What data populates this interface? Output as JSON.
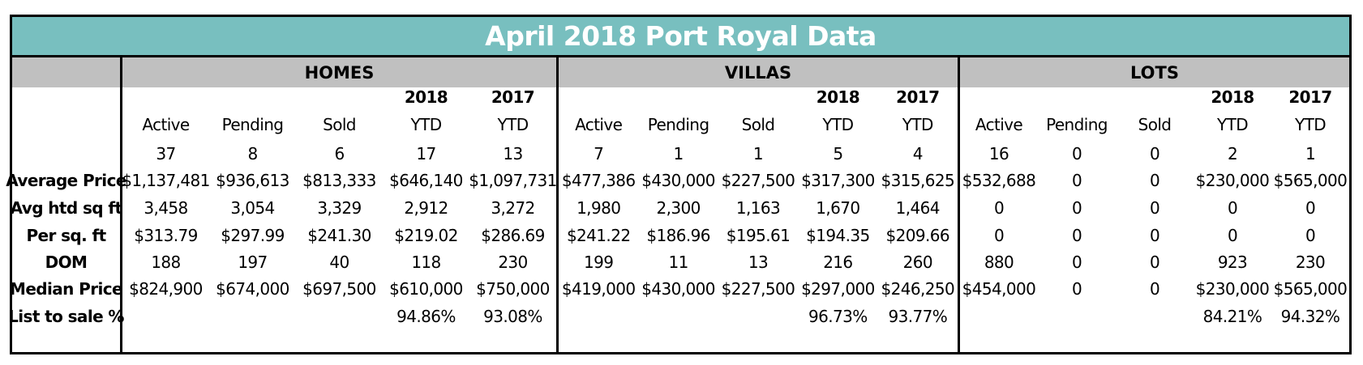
{
  "chart_data": {
    "type": "table",
    "title": "April 2018 Port Royal Data",
    "sections": [
      {
        "name": "HOMES",
        "columns": [
          {
            "top": "",
            "bottom": "Active"
          },
          {
            "top": "",
            "bottom": "Pending"
          },
          {
            "top": "",
            "bottom": "Sold"
          },
          {
            "top": "2018",
            "bottom": "YTD"
          },
          {
            "top": "2017",
            "bottom": "YTD"
          }
        ],
        "counts": [
          "37",
          "8",
          "6",
          "17",
          "13"
        ],
        "rows": [
          [
            "$1,137,481",
            "$936,613",
            "$813,333",
            "$646,140",
            "$1,097,731"
          ],
          [
            "3,458",
            "3,054",
            "3,329",
            "2,912",
            "3,272"
          ],
          [
            "$313.79",
            "$297.99",
            "$241.30",
            "$219.02",
            "$286.69"
          ],
          [
            "188",
            "197",
            "40",
            "118",
            "230"
          ],
          [
            "$824,900",
            "$674,000",
            "$697,500",
            "$610,000",
            "$750,000"
          ],
          [
            "",
            "",
            "",
            "94.86%",
            "93.08%"
          ]
        ]
      },
      {
        "name": "VILLAS",
        "columns": [
          {
            "top": "",
            "bottom": "Active"
          },
          {
            "top": "",
            "bottom": "Pending"
          },
          {
            "top": "",
            "bottom": "Sold"
          },
          {
            "top": "2018",
            "bottom": "YTD"
          },
          {
            "top": "2017",
            "bottom": "YTD"
          }
        ],
        "counts": [
          "7",
          "1",
          "1",
          "5",
          "4"
        ],
        "rows": [
          [
            "$477,386",
            "$430,000",
            "$227,500",
            "$317,300",
            "$315,625"
          ],
          [
            "1,980",
            "2,300",
            "1,163",
            "1,670",
            "1,464"
          ],
          [
            "$241.22",
            "$186.96",
            "$195.61",
            "$194.35",
            "$209.66"
          ],
          [
            "199",
            "11",
            "13",
            "216",
            "260"
          ],
          [
            "$419,000",
            "$430,000",
            "$227,500",
            "$297,000",
            "$246,250"
          ],
          [
            "",
            "",
            "",
            "96.73%",
            "93.77%"
          ]
        ]
      },
      {
        "name": "LOTS",
        "columns": [
          {
            "top": "",
            "bottom": "Active"
          },
          {
            "top": "",
            "bottom": "Pending"
          },
          {
            "top": "",
            "bottom": "Sold"
          },
          {
            "top": "2018",
            "bottom": "YTD"
          },
          {
            "top": "2017",
            "bottom": "YTD"
          }
        ],
        "counts": [
          "16",
          "0",
          "0",
          "2",
          "1"
        ],
        "rows": [
          [
            "$532,688",
            "0",
            "0",
            "$230,000",
            "$565,000"
          ],
          [
            "0",
            "0",
            "0",
            "0",
            "0"
          ],
          [
            "0",
            "0",
            "0",
            "0",
            "0"
          ],
          [
            "880",
            "0",
            "0",
            "923",
            "230"
          ],
          [
            "$454,000",
            "0",
            "0",
            "$230,000",
            "$565,000"
          ],
          [
            "",
            "",
            "",
            "84.21%",
            "94.32%"
          ]
        ]
      }
    ],
    "row_labels": [
      "Average Price",
      "Avg htd sq ft",
      "Per sq. ft",
      "DOM",
      "Median Price",
      "List to sale %"
    ],
    "colors": {
      "title_bar": "#78bfbf",
      "section_bar": "#c0c0c0",
      "title_text": "#ffffff"
    }
  }
}
